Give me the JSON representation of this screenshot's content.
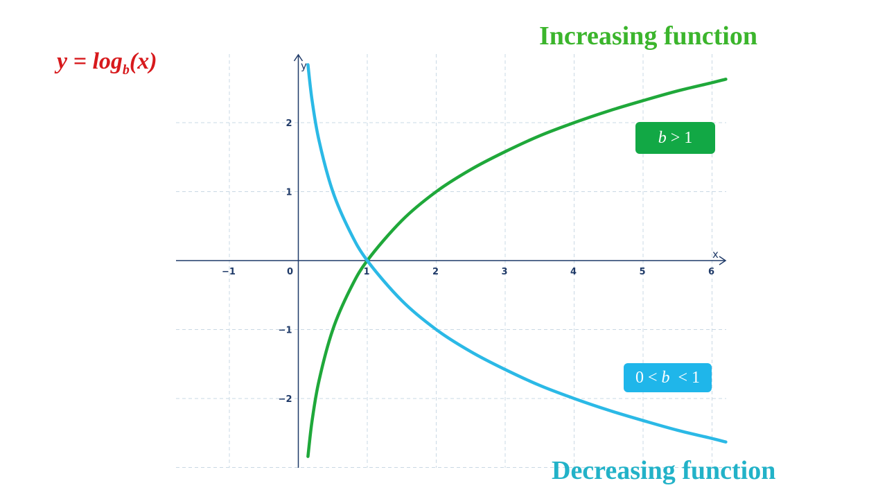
{
  "formula": {
    "y": "y",
    "equals": " = ",
    "log": "log",
    "base": "b",
    "arg": "(x)"
  },
  "labels": {
    "increasing": "Increasing function",
    "decreasing": "Decreasing function"
  },
  "badges": {
    "inc": {
      "b": "b",
      "rest": " > 1"
    },
    "dec": {
      "pre": "0 < ",
      "b": "b",
      "rest": "  < 1"
    }
  },
  "colors": {
    "formula": "#d7191c",
    "increasing": "#1fa83a",
    "decreasing": "#2bb9e6",
    "badge_inc": "#12a845",
    "badge_dec": "#1fb6ea",
    "axis": "#1f3a68",
    "grid": "#c9d8e4",
    "title_inc": "#3bb52c",
    "title_dec": "#22b2c8"
  },
  "chart_data": {
    "type": "line",
    "xlabel": "x",
    "ylabel": "y",
    "xlim": [
      -1.8,
      6.2
    ],
    "ylim": [
      -3,
      3
    ],
    "grid": true,
    "x_ticks": [
      -1,
      0,
      1,
      2,
      3,
      4,
      5,
      6
    ],
    "x_tick_labels": [
      "−1",
      "0",
      "1",
      "2",
      "3",
      "4",
      "5",
      "6"
    ],
    "y_ticks": [
      -2,
      -1,
      1,
      2
    ],
    "y_tick_labels": [
      "−2",
      "−1",
      "1",
      "2"
    ],
    "series": [
      {
        "color_key": "increasing",
        "x": [
          0.14,
          0.2,
          0.3,
          0.5,
          0.75,
          1,
          1.5,
          2,
          2.5,
          3,
          3.5,
          4,
          4.5,
          5,
          5.5,
          6,
          6.2
        ],
        "y": [
          -2.84,
          -2.32,
          -1.74,
          -1.0,
          -0.42,
          0,
          0.58,
          1.0,
          1.32,
          1.58,
          1.81,
          2.0,
          2.17,
          2.32,
          2.46,
          2.58,
          2.63
        ]
      },
      {
        "color_key": "decreasing",
        "x": [
          0.14,
          0.2,
          0.3,
          0.5,
          0.75,
          1,
          1.5,
          2,
          2.5,
          3,
          3.5,
          4,
          4.5,
          5,
          5.5,
          6,
          6.2
        ],
        "y": [
          2.84,
          2.32,
          1.74,
          1.0,
          0.42,
          0,
          -0.58,
          -1.0,
          -1.32,
          -1.58,
          -1.81,
          -2.0,
          -2.17,
          -2.32,
          -2.46,
          -2.58,
          -2.63
        ]
      }
    ]
  }
}
